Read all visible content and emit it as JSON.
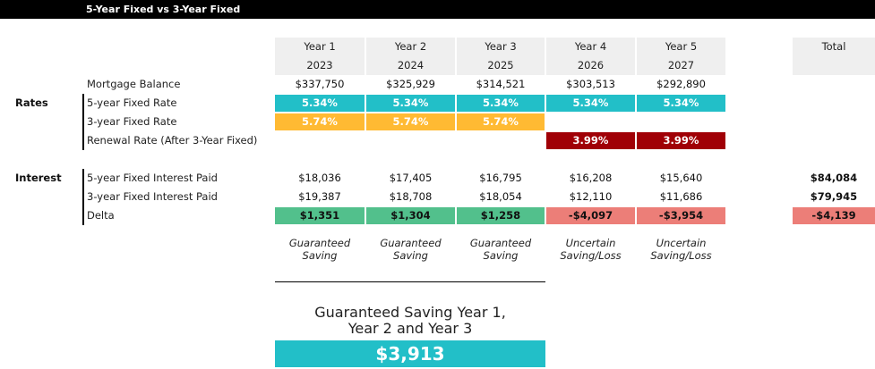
{
  "title": "5-Year Fixed vs 3-Year Fixed",
  "years": [
    {
      "label": "Year 1",
      "year": "2023"
    },
    {
      "label": "Year 2",
      "year": "2024"
    },
    {
      "label": "Year 3",
      "year": "2025"
    },
    {
      "label": "Year 4",
      "year": "2026"
    },
    {
      "label": "Year 5",
      "year": "2027"
    }
  ],
  "total_label": "Total",
  "groups": {
    "rates": "Rates",
    "interest": "Interest"
  },
  "rows": {
    "mortgage_balance": {
      "label": "Mortgage Balance",
      "values": [
        "$337,750",
        "$325,929",
        "$314,521",
        "$303,513",
        "$292,890"
      ]
    },
    "five_year_rate": {
      "label": "5-year Fixed Rate",
      "values": [
        "5.34%",
        "5.34%",
        "5.34%",
        "5.34%",
        "5.34%"
      ]
    },
    "three_year_rate": {
      "label": "3-year Fixed Rate",
      "values": [
        "5.74%",
        "5.74%",
        "5.74%"
      ]
    },
    "renewal_rate": {
      "label": "Renewal Rate (After 3-Year Fixed)",
      "values": [
        "3.99%",
        "3.99%"
      ]
    },
    "five_year_interest": {
      "label": "5-year Fixed Interest Paid",
      "values": [
        "$18,036",
        "$17,405",
        "$16,795",
        "$16,208",
        "$15,640"
      ],
      "total": "$84,084"
    },
    "three_year_interest": {
      "label": "3-year Fixed Interest Paid",
      "values": [
        "$19,387",
        "$18,708",
        "$18,054",
        "$12,110",
        "$11,686"
      ],
      "total": "$79,945"
    },
    "delta": {
      "label": "Delta",
      "values": [
        "$1,351",
        "$1,304",
        "$1,258",
        "-$4,097",
        "-$3,954"
      ],
      "total": "-$4,139"
    }
  },
  "notes": [
    [
      "Guaranteed",
      "Saving"
    ],
    [
      "Guaranteed",
      "Saving"
    ],
    [
      "Guaranteed",
      "Saving"
    ],
    [
      "Uncertain",
      "Saving/Loss"
    ],
    [
      "Uncertain",
      "Saving/Loss"
    ]
  ],
  "summary": {
    "line1": "Guaranteed Saving Year 1,",
    "line2": "Year 2 and Year 3",
    "value": "$3,913"
  },
  "colors": {
    "teal": "#22bfc8",
    "yellow": "#ffba33",
    "dark_red": "#a00006",
    "green": "#52c08c",
    "salmon": "#ec7e78",
    "header_gray": "#efefef"
  }
}
